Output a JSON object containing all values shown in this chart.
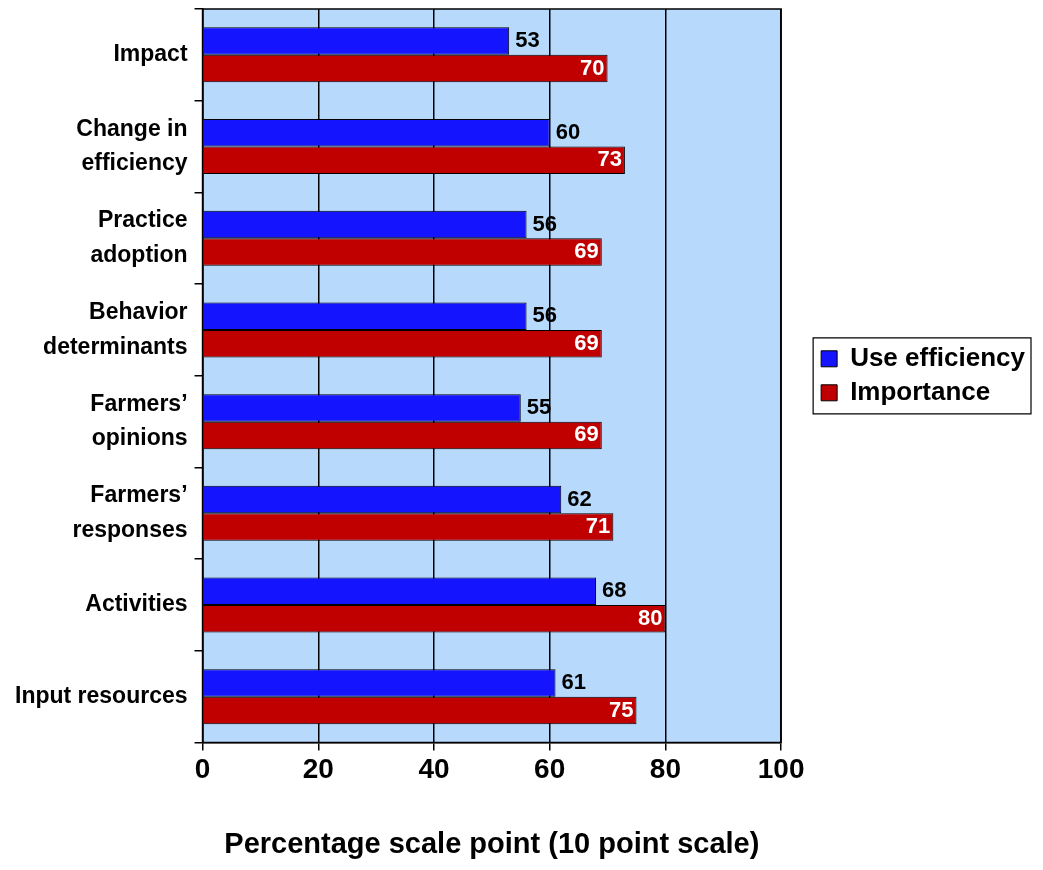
{
  "chart_data": {
    "type": "bar",
    "orientation": "horizontal",
    "xlabel": "Percentage scale point (10 point scale)",
    "categories": [
      "Impact",
      "Change in\nefficiency",
      "Practice\nadoption",
      "Behavior\ndeterminants",
      "Farmers’\nopinions",
      "Farmers’\nresponses",
      "Activities",
      "Input resources"
    ],
    "series": [
      {
        "name": "Use efficiency",
        "color": "#1414ff",
        "values": [
          53,
          60,
          56,
          56,
          55,
          62,
          68,
          61
        ]
      },
      {
        "name": "Importance",
        "color": "#c00000",
        "values": [
          70,
          73,
          69,
          69,
          69,
          71,
          80,
          75
        ]
      }
    ],
    "xlim": [
      0,
      100
    ],
    "xticks": [
      0,
      20,
      40,
      60,
      80,
      100
    ],
    "grid": "x",
    "legend": "right",
    "data_labels": true
  }
}
